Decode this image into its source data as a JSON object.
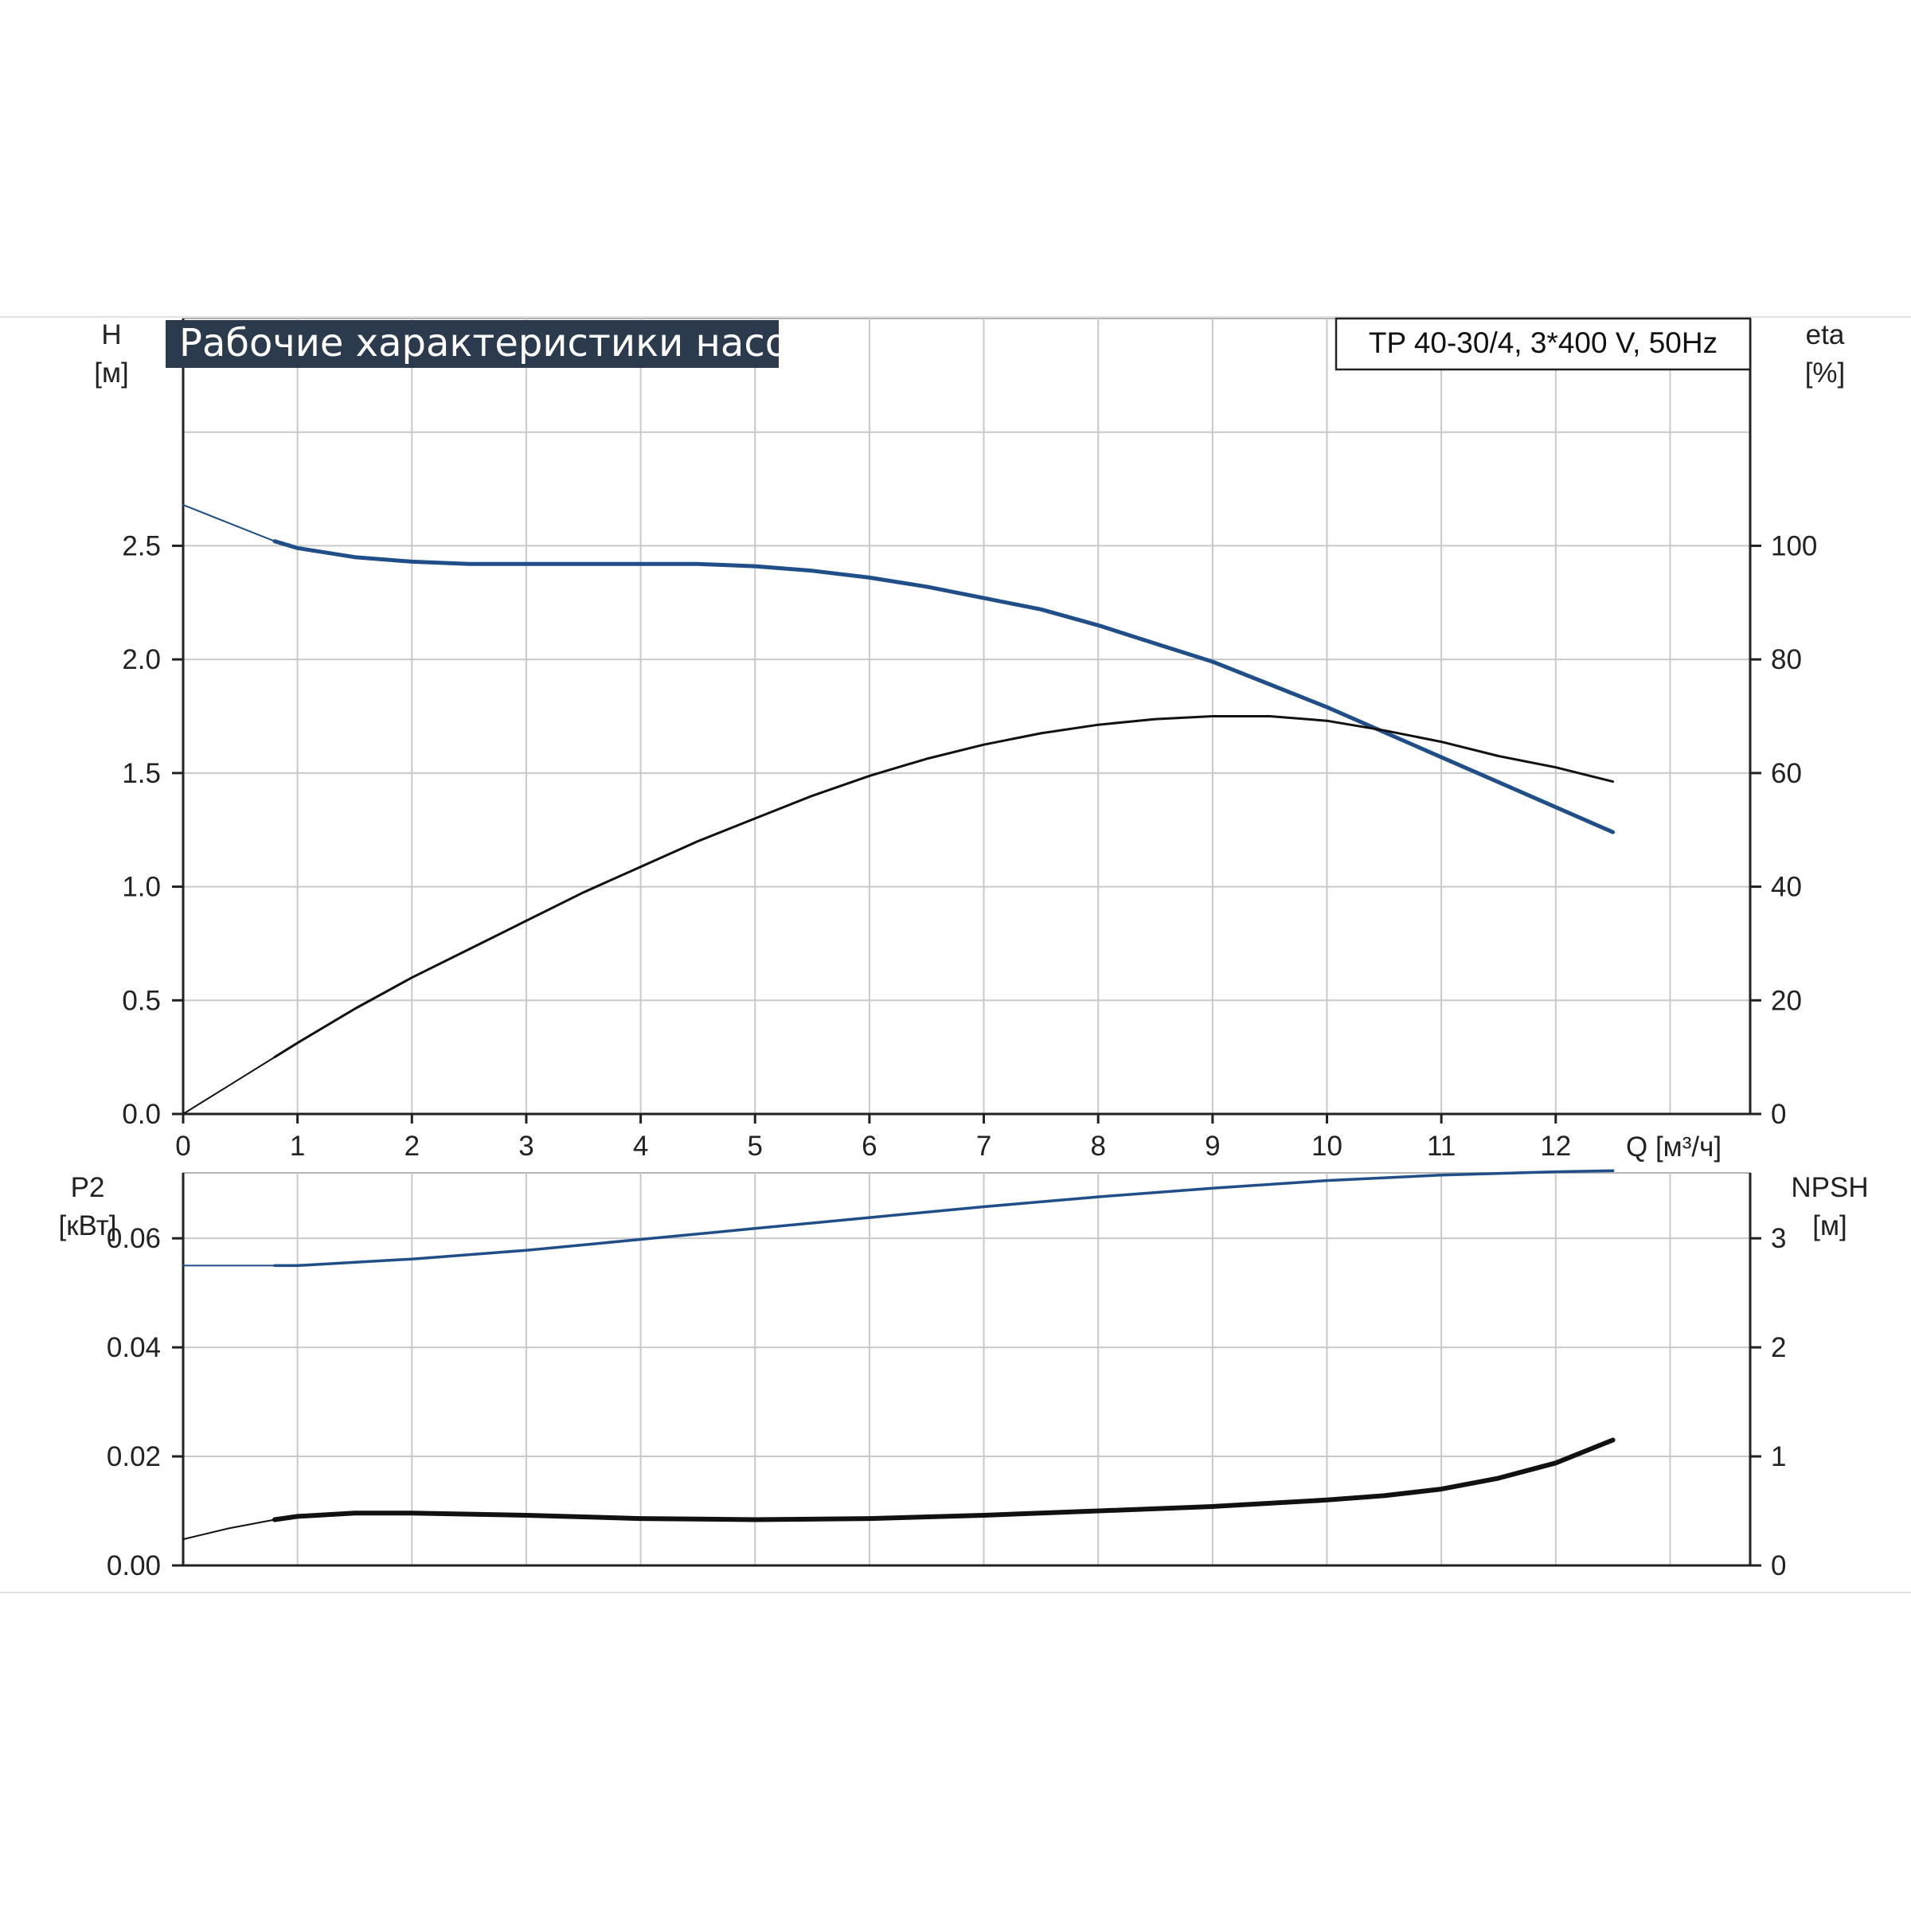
{
  "chart_data": [
    {
      "type": "line",
      "panel": "head-efficiency",
      "title": "Рабочие характеристики насоса",
      "model_label": "TP 40-30/4, 3*400 V, 50Hz",
      "xlabel": "Q [м³/ч]",
      "xlim": [
        0,
        13.7
      ],
      "x_ticks": [
        "0",
        "1",
        "2",
        "3",
        "4",
        "5",
        "6",
        "7",
        "8",
        "9",
        "10",
        "11",
        "12"
      ],
      "y_left": {
        "label": "H",
        "unit": "[м]",
        "lim": [
          0,
          3.5
        ],
        "ticks": [
          "0.0",
          "0.5",
          "1.0",
          "1.5",
          "2.0",
          "2.5"
        ]
      },
      "y_right": {
        "label": "eta",
        "unit": "[%]",
        "lim": [
          0,
          140
        ],
        "ticks": [
          "0",
          "20",
          "40",
          "60",
          "80",
          "100"
        ]
      },
      "grid": true,
      "series": [
        {
          "name": "H",
          "axis": "left",
          "color": "#1f4e89",
          "x": [
            0,
            0.4,
            0.8,
            1.0,
            1.5,
            2.0,
            2.5,
            3.0,
            3.5,
            4.0,
            4.5,
            5.0,
            5.5,
            6.0,
            6.5,
            7.0,
            7.5,
            8.0,
            8.5,
            9.0,
            9.5,
            10.0,
            10.5,
            11.0,
            11.5,
            12.0,
            12.5
          ],
          "y": [
            2.68,
            2.6,
            2.52,
            2.49,
            2.45,
            2.43,
            2.42,
            2.42,
            2.42,
            2.42,
            2.42,
            2.41,
            2.39,
            2.36,
            2.32,
            2.27,
            2.22,
            2.15,
            2.07,
            1.99,
            1.89,
            1.79,
            1.68,
            1.57,
            1.46,
            1.35,
            1.24
          ]
        },
        {
          "name": "eta",
          "axis": "right",
          "color": "#111111",
          "x": [
            0,
            0.4,
            0.8,
            1.0,
            1.5,
            2.0,
            2.5,
            3.0,
            3.5,
            4.0,
            4.5,
            5.0,
            5.5,
            6.0,
            6.5,
            7.0,
            7.5,
            8.0,
            8.5,
            9.0,
            9.5,
            10.0,
            10.5,
            11.0,
            11.5,
            12.0,
            12.5
          ],
          "y": [
            0,
            5,
            10,
            12.5,
            18.5,
            24,
            29,
            34,
            39,
            43.5,
            48,
            52,
            56,
            59.5,
            62.5,
            65,
            67,
            68.5,
            69.5,
            70,
            70,
            69.2,
            67.5,
            65.5,
            63,
            61,
            58.5
          ]
        }
      ]
    },
    {
      "type": "line",
      "panel": "power-npsh",
      "xlim": [
        0,
        13.7
      ],
      "y_left": {
        "label": "P2",
        "unit": "[кВт]",
        "lim": [
          0,
          0.072
        ],
        "ticks": [
          "0.00",
          "0.02",
          "0.04",
          "0.06"
        ]
      },
      "y_right": {
        "label": "NPSH",
        "unit": "[м]",
        "lim": [
          0,
          3.6
        ],
        "ticks": [
          "0",
          "1",
          "2",
          "3"
        ]
      },
      "grid": true,
      "series": [
        {
          "name": "P2",
          "axis": "left",
          "color": "#1f4e89",
          "x": [
            0,
            0.5,
            0.8,
            1.0,
            2.0,
            3.0,
            4.0,
            5.0,
            6.0,
            7.0,
            8.0,
            9.0,
            10.0,
            11.0,
            12.0,
            12.5
          ],
          "y": [
            0.055,
            0.055,
            0.055,
            0.055,
            0.0562,
            0.0578,
            0.0598,
            0.0618,
            0.0638,
            0.0658,
            0.0676,
            0.0692,
            0.0706,
            0.0716,
            0.0722,
            0.0724
          ]
        },
        {
          "name": "NPSH",
          "axis": "right",
          "color": "#111111",
          "x": [
            0,
            0.4,
            0.8,
            1.0,
            1.5,
            2.0,
            3.0,
            4.0,
            5.0,
            6.0,
            7.0,
            8.0,
            9.0,
            10.0,
            10.5,
            11.0,
            11.5,
            12.0,
            12.5
          ],
          "y": [
            0.24,
            0.34,
            0.42,
            0.45,
            0.48,
            0.48,
            0.46,
            0.43,
            0.42,
            0.43,
            0.46,
            0.5,
            0.54,
            0.6,
            0.64,
            0.7,
            0.8,
            0.94,
            1.15
          ]
        }
      ]
    }
  ]
}
